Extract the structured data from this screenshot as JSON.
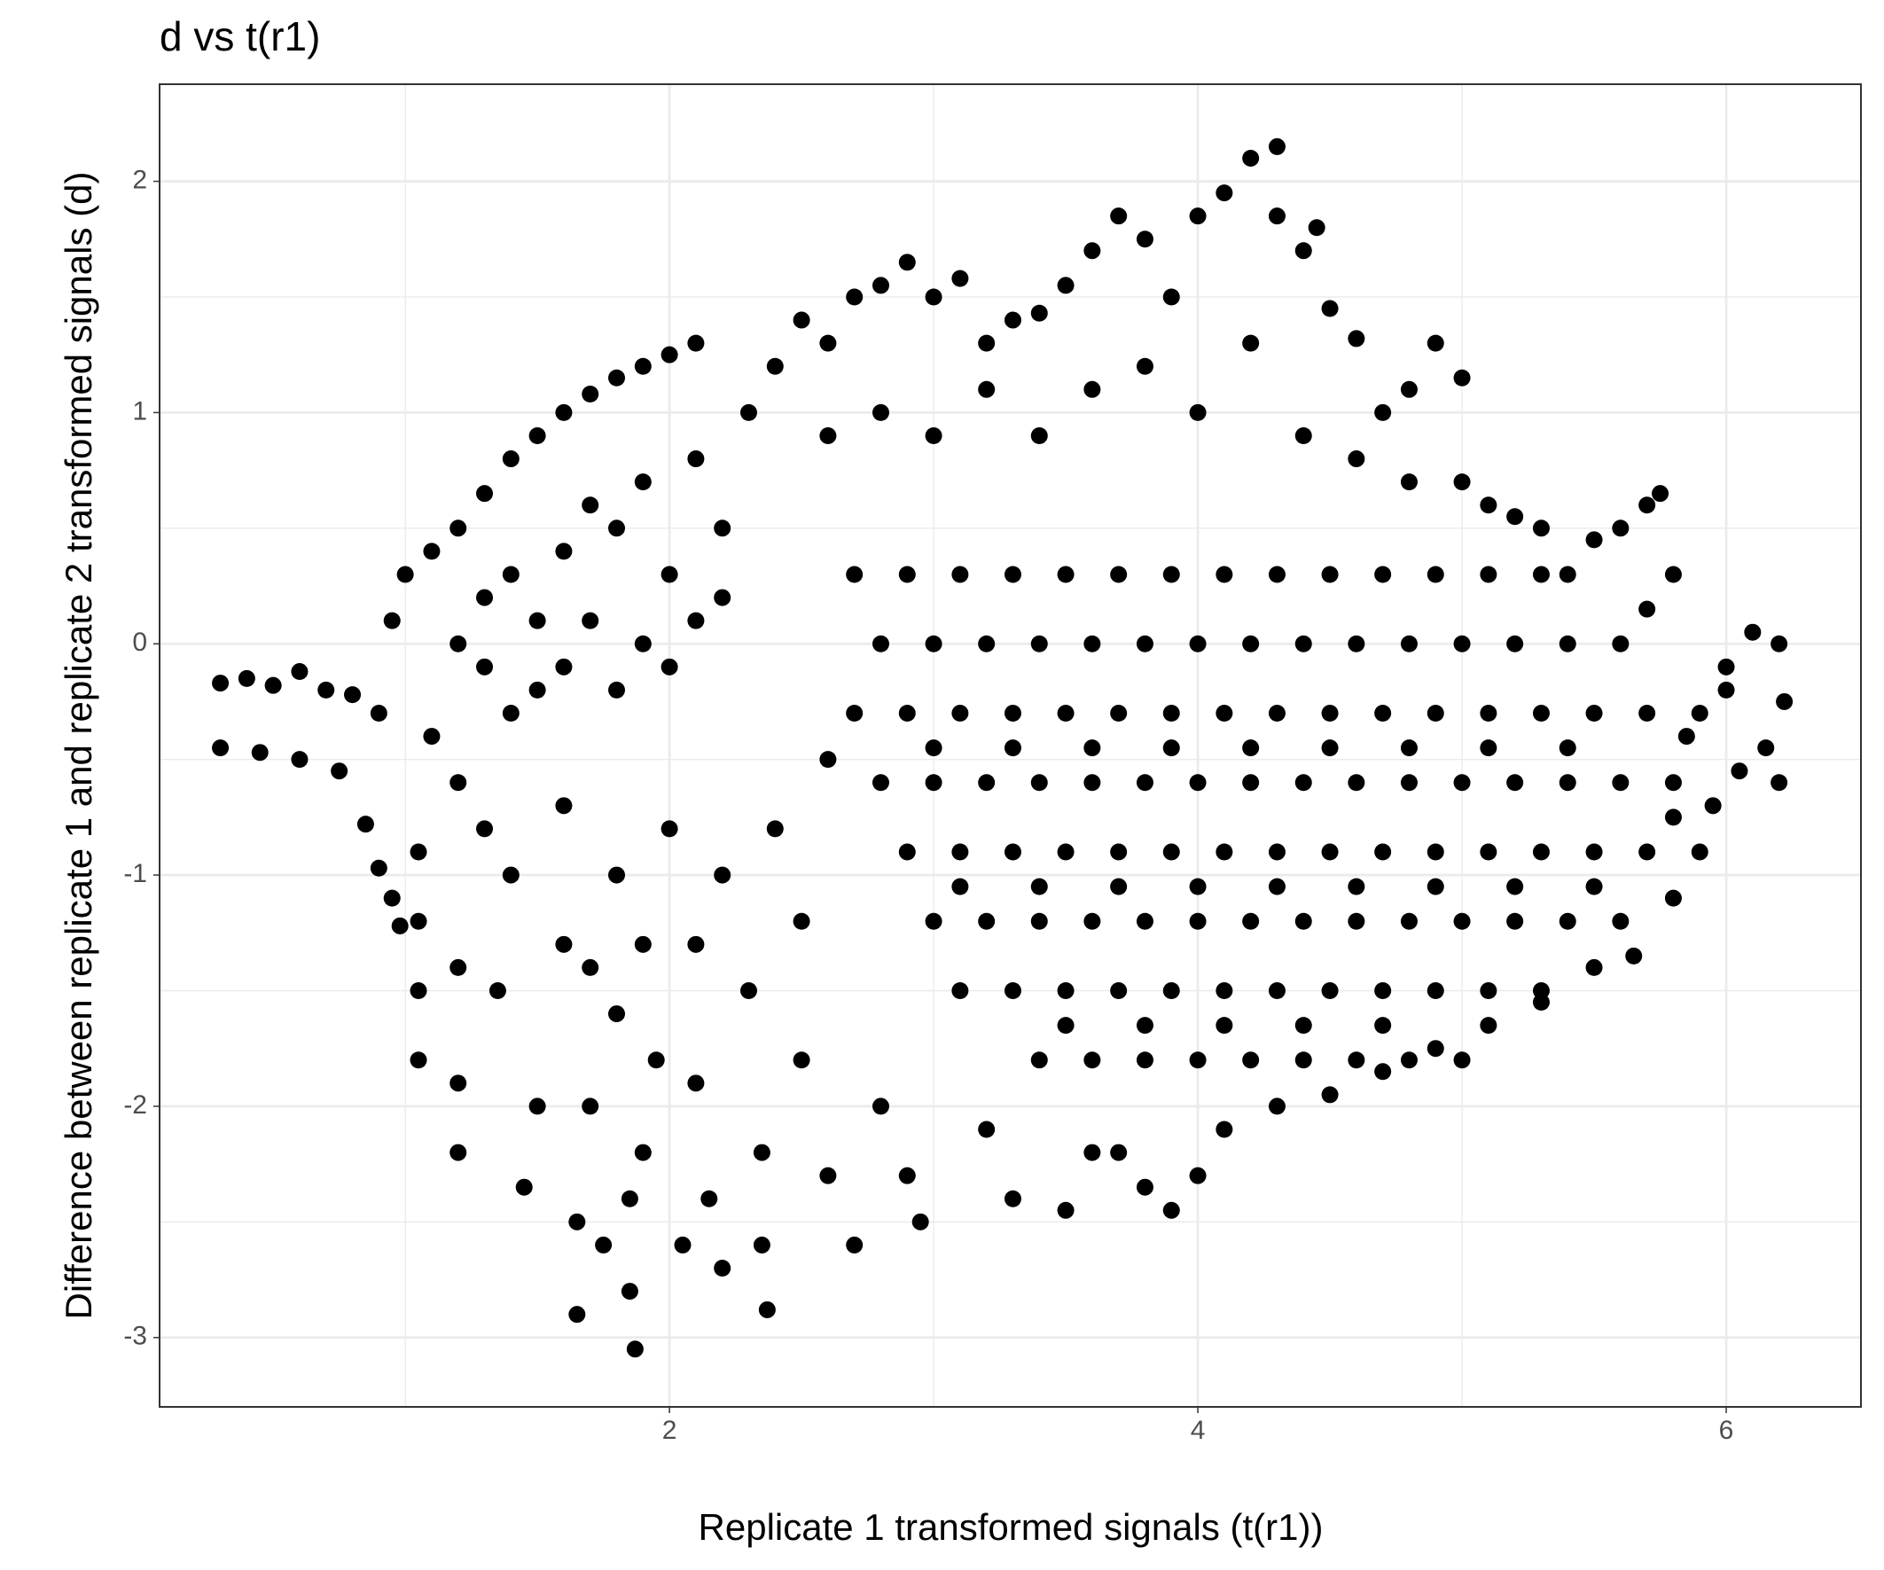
{
  "chart_data": {
    "type": "scatter",
    "title": "d vs t(r1)",
    "x_label": "Replicate 1 transformed signals (t(r1))",
    "y_label": "Difference between replicate 1 and replicate 2 transformed signals (d)",
    "color": "#000000",
    "grid": true,
    "xlim": [
      0.07,
      6.51
    ],
    "ylim": [
      -3.3,
      2.42
    ],
    "xticks": [
      2,
      4,
      6
    ],
    "yticks": [
      -3,
      -2,
      -1,
      0,
      1,
      2
    ],
    "x_minor_ticks": [
      1,
      3,
      5
    ],
    "y_minor_ticks": [
      -2.5,
      -1.5,
      -0.5,
      0.5,
      1.5
    ],
    "x": [
      0.3,
      0.4,
      0.5,
      0.6,
      0.7,
      0.8,
      0.3,
      0.45,
      0.6,
      0.75,
      0.9,
      0.85,
      0.95,
      0.98,
      0.9,
      0.95,
      1.0,
      1.1,
      1.2,
      1.3,
      1.4,
      1.5,
      1.6,
      1.7,
      1.8,
      1.9,
      2.0,
      2.1,
      1.3,
      1.4,
      1.5,
      1.6,
      1.7,
      1.8,
      1.9,
      2.0,
      2.1,
      2.2,
      2.3,
      2.4,
      2.5,
      1.2,
      1.3,
      1.4,
      1.5,
      1.6,
      1.7,
      1.8,
      1.9,
      2.0,
      2.1,
      2.2,
      1.1,
      1.2,
      1.3,
      1.05,
      1.05,
      1.05,
      1.05,
      1.2,
      1.2,
      1.2,
      1.35,
      1.45,
      1.5,
      1.6,
      1.65,
      1.65,
      1.7,
      1.75,
      1.8,
      1.85,
      1.85,
      1.87,
      1.9,
      1.95,
      2.05,
      2.1,
      2.15,
      2.2,
      2.3,
      2.35,
      2.35,
      2.37,
      2.5,
      2.6,
      2.7,
      2.8,
      2.9,
      2.95,
      2.5,
      2.4,
      2.6,
      2.2,
      2.0,
      1.8,
      1.6,
      1.4,
      1.7,
      1.9,
      2.1,
      2.6,
      2.7,
      2.8,
      2.9,
      3.0,
      3.1,
      3.2,
      3.3,
      3.4,
      3.5,
      3.6,
      3.7,
      3.8,
      3.9,
      4.0,
      4.1,
      4.2,
      4.3,
      4.3,
      4.4,
      4.45,
      4.5,
      4.6,
      4.7,
      4.8,
      4.9,
      5.0,
      2.6,
      2.8,
      3.0,
      3.2,
      3.4,
      3.6,
      3.8,
      4.0,
      4.2,
      4.4,
      4.6,
      4.8,
      5.0,
      5.1,
      5.2,
      5.3,
      5.4,
      5.5,
      5.6,
      5.7,
      5.75,
      5.8,
      5.7,
      2.7,
      2.9,
      3.1,
      3.3,
      3.5,
      3.7,
      3.9,
      4.1,
      4.3,
      4.5,
      4.7,
      4.9,
      5.1,
      5.3,
      2.8,
      3.0,
      3.2,
      3.4,
      3.6,
      3.8,
      4.0,
      4.2,
      4.4,
      4.6,
      4.8,
      5.0,
      5.2,
      5.4,
      5.6,
      2.7,
      2.9,
      3.1,
      3.3,
      3.5,
      3.7,
      3.9,
      4.1,
      4.3,
      4.5,
      4.7,
      4.9,
      5.1,
      5.3,
      5.5,
      5.7,
      3.0,
      3.3,
      3.6,
      3.9,
      4.2,
      4.5,
      4.8,
      5.1,
      5.4,
      2.8,
      3.0,
      3.2,
      3.4,
      3.6,
      3.8,
      4.0,
      4.2,
      4.4,
      4.6,
      4.8,
      5.0,
      5.2,
      5.4,
      5.6,
      5.8,
      2.9,
      3.1,
      3.3,
      3.5,
      3.7,
      3.9,
      4.1,
      4.3,
      4.5,
      4.7,
      4.9,
      5.1,
      5.3,
      5.5,
      5.7,
      3.1,
      3.4,
      3.7,
      4.0,
      4.3,
      4.6,
      4.9,
      5.2,
      5.5,
      3.0,
      3.2,
      3.4,
      3.6,
      3.8,
      4.0,
      4.2,
      4.4,
      4.6,
      4.8,
      5.0,
      5.2,
      5.4,
      5.6,
      3.1,
      3.3,
      3.5,
      3.7,
      3.9,
      4.1,
      4.3,
      4.5,
      4.7,
      4.9,
      5.1,
      5.3,
      3.5,
      3.8,
      4.1,
      4.4,
      4.7,
      3.4,
      3.6,
      3.8,
      4.0,
      4.2,
      4.4,
      4.6,
      4.8,
      5.0,
      3.2,
      3.3,
      3.5,
      3.7,
      3.9,
      4.0,
      4.1,
      4.3,
      3.6,
      3.8,
      4.5,
      4.7,
      4.9,
      5.1,
      5.3,
      5.5,
      5.65,
      5.8,
      5.9,
      5.9,
      6.0,
      6.1,
      6.2,
      6.22,
      6.15,
      6.2,
      6.05,
      5.95,
      5.8,
      6.0,
      5.85
    ],
    "values": [
      -0.17,
      -0.15,
      -0.18,
      -0.12,
      -0.2,
      -0.22,
      -0.45,
      -0.47,
      -0.5,
      -0.55,
      -0.3,
      -0.78,
      -1.1,
      -1.22,
      -0.97,
      0.1,
      0.3,
      0.4,
      0.5,
      0.65,
      0.8,
      0.9,
      1.0,
      1.08,
      1.15,
      1.2,
      1.25,
      1.3,
      0.2,
      0.3,
      0.1,
      0.4,
      0.6,
      0.5,
      0.7,
      0.3,
      0.8,
      0.5,
      1.0,
      1.2,
      1.4,
      0.0,
      -0.1,
      -0.3,
      -0.2,
      -0.1,
      0.1,
      -0.2,
      0.0,
      -0.1,
      0.1,
      0.2,
      -0.4,
      -0.6,
      -0.8,
      -0.9,
      -1.2,
      -1.5,
      -1.8,
      -1.4,
      -1.9,
      -2.2,
      -1.5,
      -2.35,
      -2.0,
      -1.3,
      -2.5,
      -2.9,
      -2.0,
      -2.6,
      -1.6,
      -2.4,
      -2.8,
      -3.05,
      -2.2,
      -1.8,
      -2.6,
      -1.9,
      -2.4,
      -2.7,
      -1.5,
      -2.2,
      -2.6,
      -2.88,
      -1.8,
      -2.3,
      -2.6,
      -2.0,
      -2.3,
      -2.5,
      -1.2,
      -0.8,
      -0.5,
      -1.0,
      -0.8,
      -1.0,
      -0.7,
      -1.0,
      -1.4,
      -1.3,
      -1.3,
      1.3,
      1.5,
      1.55,
      1.65,
      1.5,
      1.58,
      1.3,
      1.4,
      1.43,
      1.55,
      1.7,
      1.85,
      1.75,
      1.5,
      1.85,
      1.95,
      2.1,
      2.15,
      1.85,
      1.7,
      1.8,
      1.45,
      1.32,
      1.0,
      1.1,
      1.3,
      1.15,
      0.9,
      1.0,
      0.9,
      1.1,
      0.9,
      1.1,
      1.2,
      1.0,
      1.3,
      0.9,
      0.8,
      0.7,
      0.7,
      0.6,
      0.55,
      0.5,
      0.3,
      0.45,
      0.5,
      0.6,
      0.65,
      0.3,
      0.15,
      0.3,
      0.3,
      0.3,
      0.3,
      0.3,
      0.3,
      0.3,
      0.3,
      0.3,
      0.3,
      0.3,
      0.3,
      0.3,
      0.3,
      0.0,
      0.0,
      0.0,
      0.0,
      0.0,
      0.0,
      0.0,
      0.0,
      0.0,
      0.0,
      0.0,
      0.0,
      0.0,
      0.0,
      0.0,
      -0.3,
      -0.3,
      -0.3,
      -0.3,
      -0.3,
      -0.3,
      -0.3,
      -0.3,
      -0.3,
      -0.3,
      -0.3,
      -0.3,
      -0.3,
      -0.3,
      -0.3,
      -0.3,
      -0.45,
      -0.45,
      -0.45,
      -0.45,
      -0.45,
      -0.45,
      -0.45,
      -0.45,
      -0.45,
      -0.6,
      -0.6,
      -0.6,
      -0.6,
      -0.6,
      -0.6,
      -0.6,
      -0.6,
      -0.6,
      -0.6,
      -0.6,
      -0.6,
      -0.6,
      -0.6,
      -0.6,
      -0.6,
      -0.9,
      -0.9,
      -0.9,
      -0.9,
      -0.9,
      -0.9,
      -0.9,
      -0.9,
      -0.9,
      -0.9,
      -0.9,
      -0.9,
      -0.9,
      -0.9,
      -0.9,
      -1.05,
      -1.05,
      -1.05,
      -1.05,
      -1.05,
      -1.05,
      -1.05,
      -1.05,
      -1.05,
      -1.2,
      -1.2,
      -1.2,
      -1.2,
      -1.2,
      -1.2,
      -1.2,
      -1.2,
      -1.2,
      -1.2,
      -1.2,
      -1.2,
      -1.2,
      -1.2,
      -1.5,
      -1.5,
      -1.5,
      -1.5,
      -1.5,
      -1.5,
      -1.5,
      -1.5,
      -1.5,
      -1.5,
      -1.5,
      -1.5,
      -1.65,
      -1.65,
      -1.65,
      -1.65,
      -1.65,
      -1.8,
      -1.8,
      -1.8,
      -1.8,
      -1.8,
      -1.8,
      -1.8,
      -1.8,
      -1.8,
      -2.1,
      -2.4,
      -2.45,
      -2.2,
      -2.45,
      -2.3,
      -2.1,
      -2.0,
      -2.2,
      -2.35,
      -1.95,
      -1.85,
      -1.75,
      -1.65,
      -1.55,
      -1.4,
      -1.35,
      -1.1,
      -0.9,
      -0.3,
      -0.1,
      0.05,
      0.0,
      -0.25,
      -0.45,
      -0.6,
      -0.55,
      -0.7,
      -0.75,
      -0.2,
      -0.4
    ]
  }
}
